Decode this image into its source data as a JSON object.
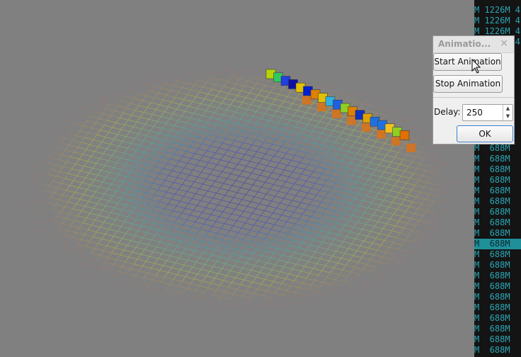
{
  "terminal": {
    "lines": [
      "M 1226M 4",
      "M 1226M 4",
      "M 1226M 4",
      "M 1226M 4",
      "M  688M",
      "M  688M",
      "M  688M",
      "M  688M",
      "M  688M",
      "M  688M",
      "M  688M",
      "M  688M",
      "M  688M",
      "M  688M",
      "M  688M",
      "M  688M",
      "M  688M",
      "M  688M",
      "M  688M",
      "M  688M",
      "M  688M",
      "M  688M",
      "M  688M",
      "M  688M",
      "M  688M"
    ]
  },
  "dialog": {
    "title": "Animatio...",
    "start_button": "Start Animation",
    "stop_button": "Stop Animation",
    "delay_label": "Delay:",
    "delay_value": 250,
    "ok_button": "OK"
  }
}
